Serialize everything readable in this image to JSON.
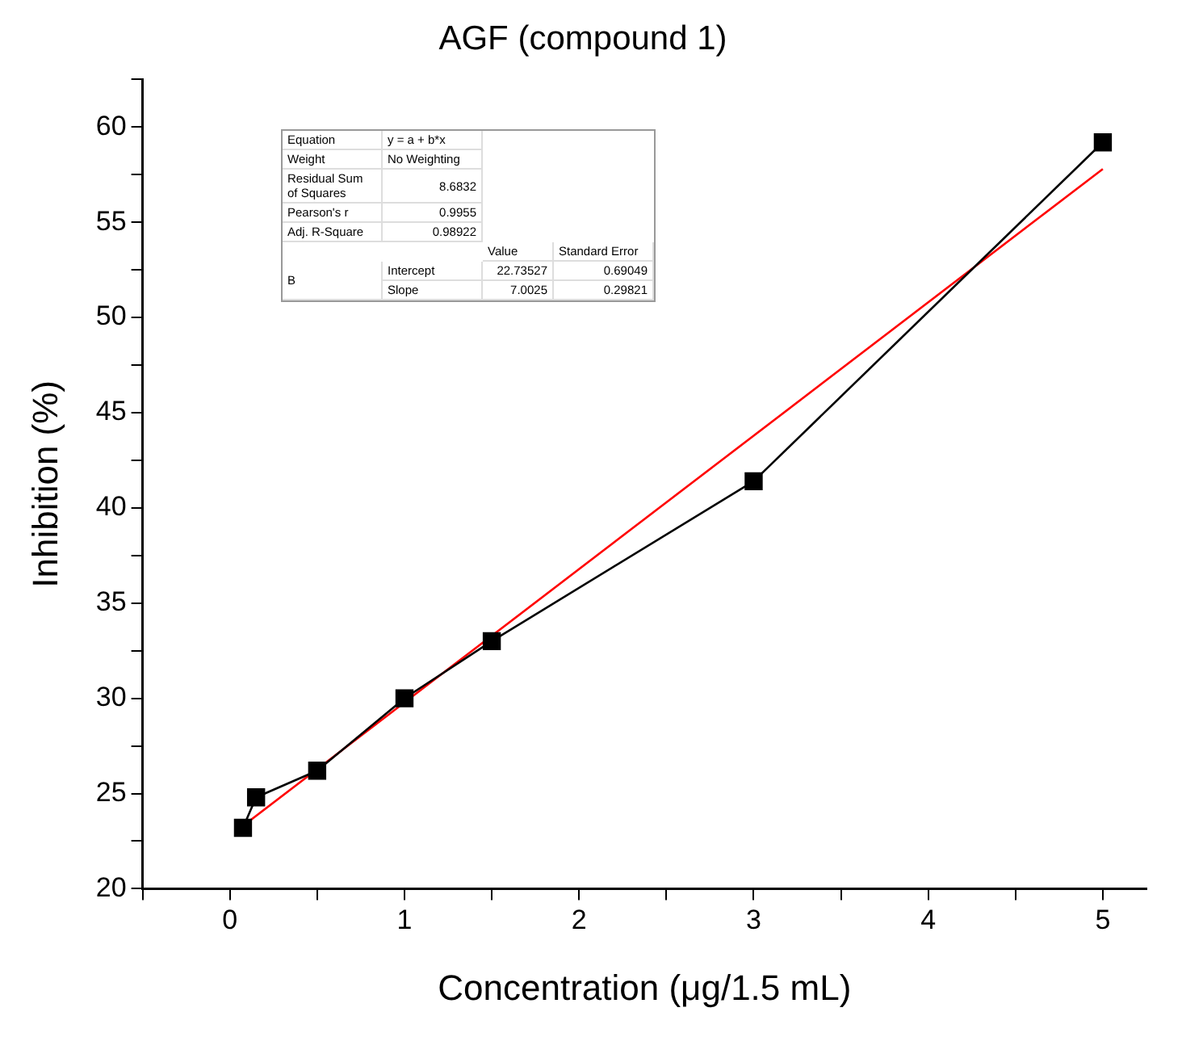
{
  "chart_data": {
    "type": "line",
    "title": "AGF (compound 1)",
    "xlabel": "Concentration (μg/1.5 mL)",
    "ylabel": "Inhibition (%)",
    "xlim": [
      -0.5,
      5.25
    ],
    "xticks": [
      {
        "value": -0.5,
        "label": null
      },
      0,
      {
        "value": 0.5,
        "label": null
      },
      1,
      {
        "value": 1.5,
        "label": null
      },
      2,
      {
        "value": 2.5,
        "label": null
      },
      3,
      {
        "value": 3.5,
        "label": null
      },
      4,
      {
        "value": 4.5,
        "label": null
      },
      5
    ],
    "ylim": [
      20,
      62.5
    ],
    "yticks": [
      20,
      {
        "value": 22.5,
        "label": null
      },
      25,
      {
        "value": 27.5,
        "label": null
      },
      30,
      {
        "value": 32.5,
        "label": null
      },
      35,
      {
        "value": 37.5,
        "label": null
      },
      40,
      {
        "value": 42.5,
        "label": null
      },
      45,
      {
        "value": 47.5,
        "label": null
      },
      50,
      {
        "value": 52.5,
        "label": null
      },
      55,
      {
        "value": 57.5,
        "label": null
      },
      60,
      {
        "value": 62.5,
        "label": null
      }
    ],
    "grid": false,
    "marker": "square",
    "line_style": "solid",
    "series": [
      {
        "color": "#000000",
        "x": [
          0.075,
          0.15,
          0.5,
          1,
          1.5,
          3,
          5
        ],
        "values": [
          23.2,
          24.8,
          26.2,
          30.0,
          33.0,
          41.4,
          59.2
        ]
      },
      {
        "color": "#ff0000",
        "marker": "none",
        "x": [
          0.075,
          5
        ],
        "values": [
          23.3,
          57.8
        ]
      }
    ],
    "annotations": [
      "Equation",
      "y = a + b*x",
      "Weight",
      "No Weighting",
      "Residual Sum of Squares",
      "8.6832",
      "Pearson's r",
      "0.9955",
      "Adj. R-Square",
      "0.98922",
      "Value",
      "Standard Error",
      "B",
      "Intercept",
      "22.73527",
      "0.69049",
      "Slope",
      "7.0025",
      "0.29821"
    ]
  }
}
